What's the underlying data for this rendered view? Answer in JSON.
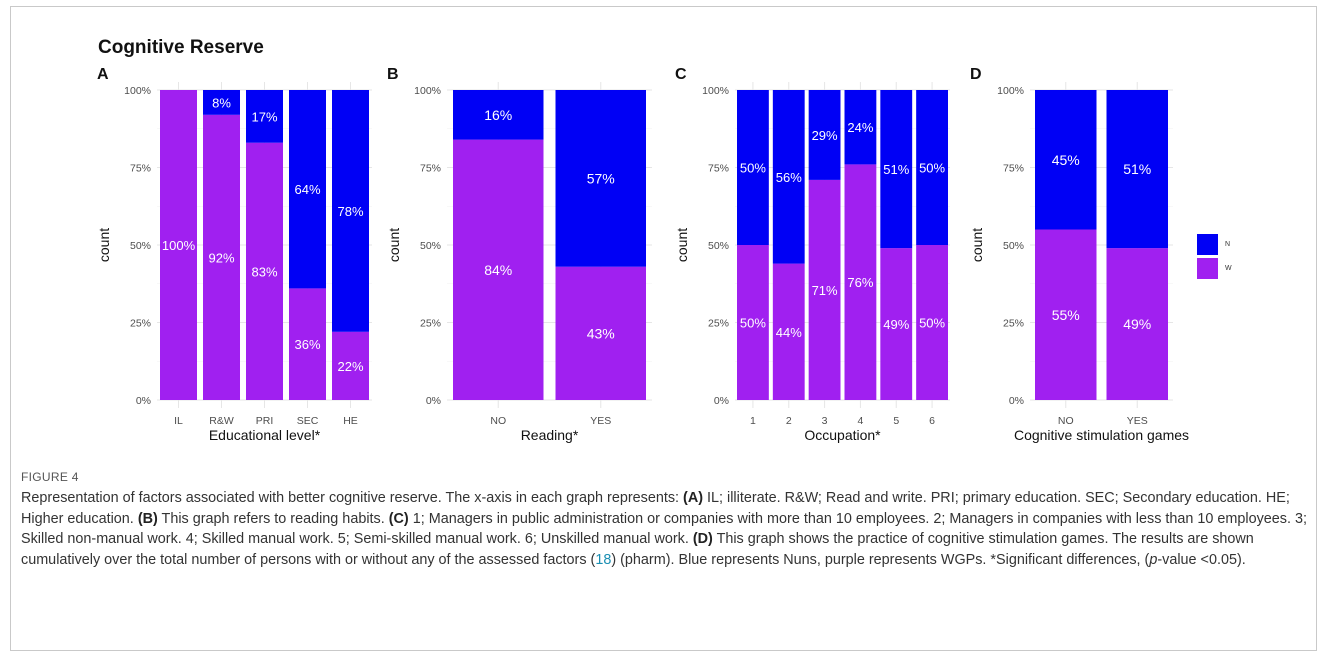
{
  "figure": {
    "title": "Cognitive Reserve",
    "figure_label": "FIGURE 4",
    "caption_html": "Representation of factors associated with better cognitive reserve. The x-axis in each graph represents: <b>(A)</b> IL; illiterate. R&amp;W; Read and write. PRI; primary education. SEC; Secondary education. HE; Higher education. <b>(B)</b> This graph refers to reading habits. <b>(C)</b> 1; Managers in public administration or companies with more than 10 employees. 2; Managers in companies with less than 10 employees. 3; Skilled non-manual work. 4; Skilled manual work. 5; Semi-skilled manual work. 6; Unskilled manual work. <b>(D)</b> This graph shows the practice of cognitive stimulation games. The results are shown cumulatively over the total number of persons with or without any of the assessed factors (<span class=\"ref\">18</span>) (pharm). Blue represents Nuns, purple represents WGPs. *Significant differences, (<i>p</i>-value &lt;0.05)."
  },
  "colors": {
    "N": "#0000f5",
    "W": "#a020f0",
    "grid": "#e6e6e6",
    "panel_bg": "#ffffff"
  },
  "legend": [
    {
      "key": "N",
      "label": "N",
      "color": "#0000f5"
    },
    {
      "key": "W",
      "label": "W",
      "color": "#a020f0"
    }
  ],
  "chart_data": [
    {
      "panel": "A",
      "type": "bar",
      "stacked": true,
      "categories": [
        "IL",
        "R&W",
        "PRI",
        "SEC",
        "HE"
      ],
      "series": [
        {
          "name": "N",
          "values": [
            0,
            8,
            17,
            64,
            78
          ],
          "labels": [
            "",
            "8%",
            "17%",
            "64%",
            "78%"
          ]
        },
        {
          "name": "W",
          "values": [
            100,
            92,
            83,
            36,
            22
          ],
          "labels": [
            "100%",
            "92%",
            "83%",
            "36%",
            "22%"
          ]
        }
      ],
      "xlabel": "Educational level*",
      "ylabel": "count",
      "yticks": [
        "0%",
        "25%",
        "50%",
        "75%",
        "100%"
      ],
      "ylim": [
        0,
        100
      ]
    },
    {
      "panel": "B",
      "type": "bar",
      "stacked": true,
      "categories": [
        "NO",
        "YES"
      ],
      "series": [
        {
          "name": "N",
          "values": [
            16,
            57
          ],
          "labels": [
            "16%",
            "57%"
          ]
        },
        {
          "name": "W",
          "values": [
            84,
            43
          ],
          "labels": [
            "84%",
            "43%"
          ]
        }
      ],
      "xlabel": "Reading*",
      "ylabel": "count",
      "yticks": [
        "0%",
        "25%",
        "50%",
        "75%",
        "100%"
      ],
      "ylim": [
        0,
        100
      ]
    },
    {
      "panel": "C",
      "type": "bar",
      "stacked": true,
      "categories": [
        "1",
        "2",
        "3",
        "4",
        "5",
        "6"
      ],
      "series": [
        {
          "name": "N",
          "values": [
            50,
            56,
            29,
            24,
            51,
            50
          ],
          "labels": [
            "50%",
            "56%",
            "29%",
            "24%",
            "51%",
            "50%"
          ]
        },
        {
          "name": "W",
          "values": [
            50,
            44,
            71,
            76,
            49,
            50
          ],
          "labels": [
            "50%",
            "44%",
            "71%",
            "76%",
            "49%",
            "50%"
          ]
        }
      ],
      "xlabel": "Occupation*",
      "ylabel": "count",
      "yticks": [
        "0%",
        "25%",
        "50%",
        "75%",
        "100%"
      ],
      "ylim": [
        0,
        100
      ]
    },
    {
      "panel": "D",
      "type": "bar",
      "stacked": true,
      "categories": [
        "NO",
        "YES"
      ],
      "series": [
        {
          "name": "N",
          "values": [
            45,
            51
          ],
          "labels": [
            "45%",
            "51%"
          ]
        },
        {
          "name": "W",
          "values": [
            55,
            49
          ],
          "labels": [
            "55%",
            "49%"
          ]
        }
      ],
      "xlabel": "Cognitive stimulation games",
      "ylabel": "count",
      "yticks": [
        "0%",
        "25%",
        "50%",
        "75%",
        "100%"
      ],
      "ylim": [
        0,
        100
      ]
    }
  ]
}
